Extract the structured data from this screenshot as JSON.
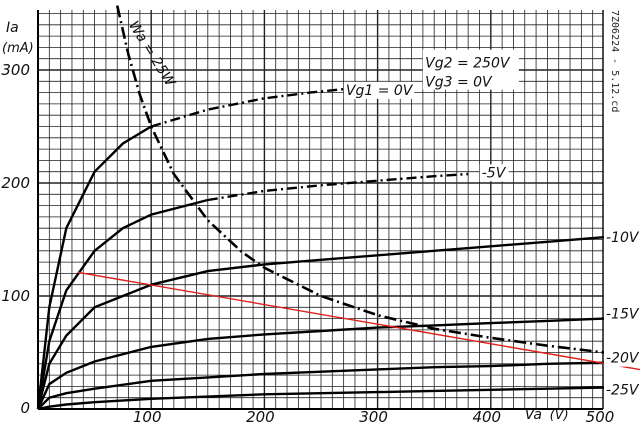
{
  "chart_data": {
    "type": "line",
    "ylabel": "Ia",
    "yunit": "(mA)",
    "xlabel": "Va",
    "xunit": "(V)",
    "xlim": [
      0,
      500
    ],
    "ylim": [
      0,
      350
    ],
    "x_ticks": [
      "100",
      "200",
      "300",
      "400",
      "500"
    ],
    "y_ticks": [
      "0",
      "100",
      "200",
      "300"
    ],
    "conditions": [
      "Vg2 = 250V",
      "Vg3 = 0V"
    ],
    "max_dissipation_label": "Wa = 25W",
    "code_label": "7Z06224 - 5.12.cd",
    "grid": true,
    "series": [
      {
        "name": "Vg1 = 0V",
        "x": [
          0,
          10,
          25,
          50,
          75,
          100,
          150,
          200,
          240,
          270
        ],
        "y": [
          0,
          90,
          160,
          210,
          235,
          250,
          265,
          275,
          280,
          283
        ]
      },
      {
        "name": "-5V",
        "x": [
          0,
          10,
          25,
          50,
          75,
          100,
          150,
          200,
          250,
          300,
          350,
          380
        ],
        "y": [
          0,
          60,
          105,
          140,
          160,
          172,
          185,
          193,
          198,
          202,
          206,
          208
        ]
      },
      {
        "name": "-10V",
        "x": [
          0,
          10,
          25,
          50,
          100,
          150,
          200,
          250,
          300,
          350,
          400,
          450,
          500
        ],
        "y": [
          0,
          40,
          65,
          90,
          110,
          122,
          128,
          132,
          136,
          140,
          144,
          148,
          152
        ]
      },
      {
        "name": "-15V",
        "x": [
          0,
          10,
          25,
          50,
          100,
          150,
          200,
          250,
          300,
          350,
          400,
          450,
          500
        ],
        "y": [
          0,
          22,
          32,
          42,
          55,
          62,
          66,
          69,
          72,
          74,
          76,
          78,
          80
        ]
      },
      {
        "name": "-20V",
        "x": [
          0,
          10,
          25,
          50,
          100,
          150,
          200,
          250,
          300,
          350,
          400,
          450,
          500
        ],
        "y": [
          0,
          10,
          14,
          18,
          25,
          28,
          31,
          33,
          35,
          37,
          38,
          40,
          41
        ]
      },
      {
        "name": "-25V",
        "x": [
          0,
          10,
          25,
          50,
          100,
          150,
          200,
          250,
          300,
          350,
          400,
          450,
          500
        ],
        "y": [
          0,
          2,
          4,
          6,
          9,
          11,
          13,
          14,
          15,
          16,
          17,
          18,
          19
        ]
      }
    ],
    "dissipation_curve": {
      "x": [
        70,
        80,
        90,
        100,
        120,
        150,
        180,
        200,
        250,
        300,
        350,
        400,
        450,
        500
      ],
      "y": [
        357,
        313,
        278,
        250,
        208,
        167,
        139,
        125,
        100,
        83,
        71,
        63,
        56,
        50
      ]
    },
    "load_line": {
      "x": [
        35,
        560
      ],
      "y": [
        121,
        30
      ],
      "color": "#e0201a"
    }
  }
}
